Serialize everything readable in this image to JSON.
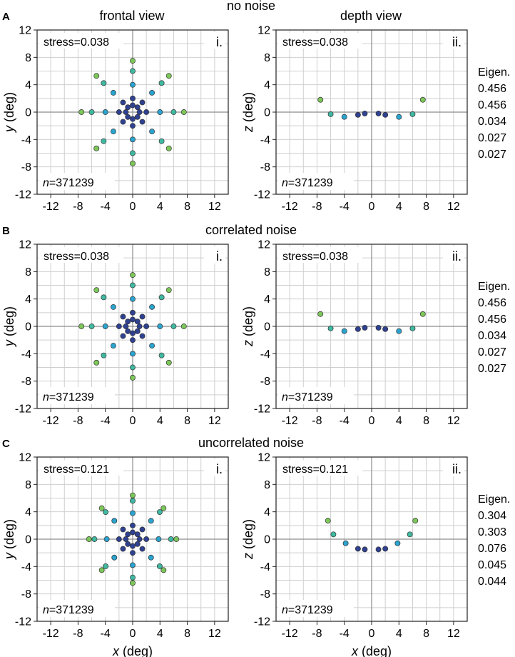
{
  "figure": {
    "col_titles": [
      "frontal view",
      "depth view"
    ],
    "x_axis_label": "x",
    "x_axis_unit": "(deg)",
    "eigen_label": "Eigen."
  },
  "colors": {
    "center": "#2f4191",
    "inner": "#2aa3cf",
    "mid": "#3fb9a2",
    "outer": "#7dc75a",
    "grid": "#cfcfcf",
    "axis": "#8c8c8c"
  },
  "chart_data": [
    {
      "type": "scatter",
      "panel": "A",
      "row_title": "no noise",
      "sub": "i.",
      "stress": "stress=0.038",
      "n_prefix": "n",
      "n_value": "=371239",
      "xlabel": "x (deg)",
      "ylabel": "y (deg)",
      "y_var": "y",
      "xlim": [
        -14,
        14
      ],
      "ylim": [
        -12,
        12
      ],
      "xticks": [
        -12,
        -8,
        -4,
        0,
        4,
        8,
        12
      ],
      "yticks": [
        -12,
        -8,
        -4,
        0,
        4,
        8,
        12
      ],
      "rings": [
        {
          "r": 1.0,
          "c": "center"
        },
        {
          "r": 2.0,
          "c": "center"
        },
        {
          "r": 4.0,
          "c": "inner"
        },
        {
          "r": 6.0,
          "c": "mid"
        },
        {
          "r": 7.5,
          "c": "outer"
        }
      ],
      "n_dirs": 8
    },
    {
      "type": "scatter",
      "panel": "A",
      "sub": "ii.",
      "stress": "stress=0.038",
      "n_prefix": "n",
      "n_value": "=371239",
      "xlabel": "x (deg)",
      "ylabel": "z (deg)",
      "y_var": "z",
      "xlim": [
        -14,
        14
      ],
      "ylim": [
        -12,
        12
      ],
      "xticks": [
        -12,
        -8,
        -4,
        0,
        4,
        8,
        12
      ],
      "yticks": [
        -12,
        -8,
        -4,
        0,
        4,
        8,
        12
      ],
      "eigen": [
        "0.456",
        "0.456",
        "0.034",
        "0.027",
        "0.027"
      ],
      "points": [
        {
          "x": -7.5,
          "z": 1.8,
          "c": "outer"
        },
        {
          "x": -6.0,
          "z": -0.3,
          "c": "mid"
        },
        {
          "x": -4.0,
          "z": -0.7,
          "c": "inner"
        },
        {
          "x": -2.0,
          "z": -0.4,
          "c": "center"
        },
        {
          "x": -1.0,
          "z": -0.2,
          "c": "center"
        },
        {
          "x": 1.0,
          "z": -0.2,
          "c": "center"
        },
        {
          "x": 2.0,
          "z": -0.4,
          "c": "center"
        },
        {
          "x": 4.0,
          "z": -0.7,
          "c": "inner"
        },
        {
          "x": 6.0,
          "z": -0.3,
          "c": "mid"
        },
        {
          "x": 7.5,
          "z": 1.8,
          "c": "outer"
        }
      ]
    },
    {
      "type": "scatter",
      "panel": "B",
      "row_title": "correlated noise",
      "sub": "i.",
      "stress": "stress=0.038",
      "n_prefix": "n",
      "n_value": "=371239",
      "xlabel": "x (deg)",
      "ylabel": "y (deg)",
      "y_var": "y",
      "xlim": [
        -14,
        14
      ],
      "ylim": [
        -12,
        12
      ],
      "xticks": [
        -12,
        -8,
        -4,
        0,
        4,
        8,
        12
      ],
      "yticks": [
        -12,
        -8,
        -4,
        0,
        4,
        8,
        12
      ],
      "rings": [
        {
          "r": 1.0,
          "c": "center"
        },
        {
          "r": 2.0,
          "c": "center"
        },
        {
          "r": 4.0,
          "c": "inner"
        },
        {
          "r": 6.0,
          "c": "mid"
        },
        {
          "r": 7.5,
          "c": "outer"
        }
      ],
      "n_dirs": 8
    },
    {
      "type": "scatter",
      "panel": "B",
      "sub": "ii.",
      "stress": "stress=0.038",
      "n_prefix": "n",
      "n_value": "=371239",
      "xlabel": "x (deg)",
      "ylabel": "z (deg)",
      "y_var": "z",
      "xlim": [
        -14,
        14
      ],
      "ylim": [
        -12,
        12
      ],
      "xticks": [
        -12,
        -8,
        -4,
        0,
        4,
        8,
        12
      ],
      "yticks": [
        -12,
        -8,
        -4,
        0,
        4,
        8,
        12
      ],
      "eigen": [
        "0.456",
        "0.456",
        "0.034",
        "0.027",
        "0.027"
      ],
      "points": [
        {
          "x": -7.5,
          "z": 1.8,
          "c": "outer"
        },
        {
          "x": -6.0,
          "z": -0.3,
          "c": "mid"
        },
        {
          "x": -4.0,
          "z": -0.7,
          "c": "inner"
        },
        {
          "x": -2.0,
          "z": -0.4,
          "c": "center"
        },
        {
          "x": -1.0,
          "z": -0.2,
          "c": "center"
        },
        {
          "x": 1.0,
          "z": -0.2,
          "c": "center"
        },
        {
          "x": 2.0,
          "z": -0.4,
          "c": "center"
        },
        {
          "x": 4.0,
          "z": -0.7,
          "c": "inner"
        },
        {
          "x": 6.0,
          "z": -0.3,
          "c": "mid"
        },
        {
          "x": 7.5,
          "z": 1.8,
          "c": "outer"
        }
      ]
    },
    {
      "type": "scatter",
      "panel": "C",
      "row_title": "uncorrelated noise",
      "sub": "i.",
      "stress": "stress=0.121",
      "n_prefix": "n",
      "n_value": "=371239",
      "xlabel": "x (deg)",
      "ylabel": "y (deg)",
      "y_var": "y",
      "xlim": [
        -14,
        14
      ],
      "ylim": [
        -12,
        12
      ],
      "xticks": [
        -12,
        -8,
        -4,
        0,
        4,
        8,
        12
      ],
      "yticks": [
        -12,
        -8,
        -4,
        0,
        4,
        8,
        12
      ],
      "rings": [
        {
          "r": 1.0,
          "c": "center"
        },
        {
          "r": 2.0,
          "c": "center"
        },
        {
          "r": 3.8,
          "c": "inner"
        },
        {
          "r": 5.6,
          "c": "mid"
        },
        {
          "r": 6.4,
          "c": "outer"
        }
      ],
      "n_dirs": 8
    },
    {
      "type": "scatter",
      "panel": "C",
      "sub": "ii.",
      "stress": "stress=0.121",
      "n_prefix": "n",
      "n_value": "=371239",
      "xlabel": "x (deg)",
      "ylabel": "z (deg)",
      "y_var": "z",
      "xlim": [
        -14,
        14
      ],
      "ylim": [
        -12,
        12
      ],
      "xticks": [
        -12,
        -8,
        -4,
        0,
        4,
        8,
        12
      ],
      "yticks": [
        -12,
        -8,
        -4,
        0,
        4,
        8,
        12
      ],
      "eigen": [
        "0.304",
        "0.303",
        "0.076",
        "0.045",
        "0.044"
      ],
      "points": [
        {
          "x": -6.4,
          "z": 2.7,
          "c": "outer"
        },
        {
          "x": -5.6,
          "z": 0.7,
          "c": "mid"
        },
        {
          "x": -3.8,
          "z": -0.6,
          "c": "inner"
        },
        {
          "x": -2.0,
          "z": -1.4,
          "c": "center"
        },
        {
          "x": -1.0,
          "z": -1.5,
          "c": "center"
        },
        {
          "x": 1.0,
          "z": -1.5,
          "c": "center"
        },
        {
          "x": 2.0,
          "z": -1.4,
          "c": "center"
        },
        {
          "x": 3.8,
          "z": -0.6,
          "c": "inner"
        },
        {
          "x": 5.6,
          "z": 0.7,
          "c": "mid"
        },
        {
          "x": 6.4,
          "z": 2.7,
          "c": "outer"
        }
      ]
    }
  ]
}
